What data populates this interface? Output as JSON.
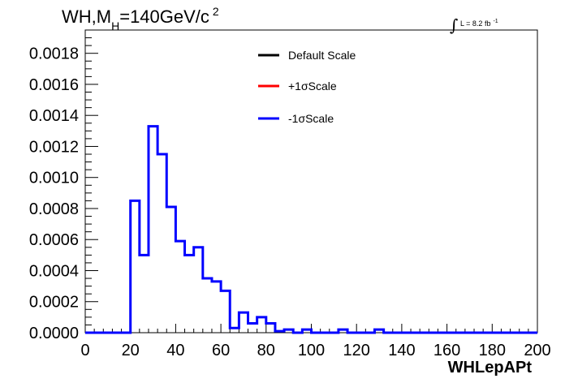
{
  "title": {
    "prefix": "WH,M",
    "subscript": "H",
    "suffix": "=140GeV/c",
    "superscript": "2"
  },
  "luminosity": {
    "symbol": "∫",
    "text": "L = 8.2 fb",
    "exponent": "-1"
  },
  "colors": {
    "default": "#000000",
    "plus": "#ff0000",
    "minus": "#0000ff"
  },
  "chart_data": {
    "type": "line",
    "xlabel": "WHLepAPt",
    "ylabel": "",
    "xlim": [
      0,
      200
    ],
    "ylim": [
      0,
      0.00195
    ],
    "x_ticks": [
      "0",
      "20",
      "40",
      "60",
      "80",
      "100",
      "120",
      "140",
      "160",
      "180",
      "200"
    ],
    "y_ticks": [
      "0.0000",
      "0.0002",
      "0.0004",
      "0.0006",
      "0.0008",
      "0.0010",
      "0.0012",
      "0.0014",
      "0.0016",
      "0.0018"
    ],
    "bin_width": 4,
    "bin_edges_start": 0,
    "legend": [
      "Default Scale",
      "+1σScale",
      "-1σScale"
    ],
    "legend_position": "top-right",
    "series": [
      {
        "name": "-1σScale",
        "values": [
          0,
          0,
          0,
          0,
          0,
          0.00085,
          0.0005,
          0.00133,
          0.00115,
          0.00081,
          0.00059,
          0.0005,
          0.00055,
          0.00035,
          0.00033,
          0.00027,
          3e-05,
          0.00013,
          6e-05,
          0.0001,
          6e-05,
          1e-05,
          2e-05,
          0,
          2e-05,
          0,
          0,
          0,
          2e-05,
          0,
          0,
          0,
          2e-05,
          0,
          0,
          0,
          0,
          0,
          0,
          0,
          0,
          0,
          0,
          0,
          0,
          0,
          0,
          0,
          0,
          0
        ]
      }
    ]
  }
}
